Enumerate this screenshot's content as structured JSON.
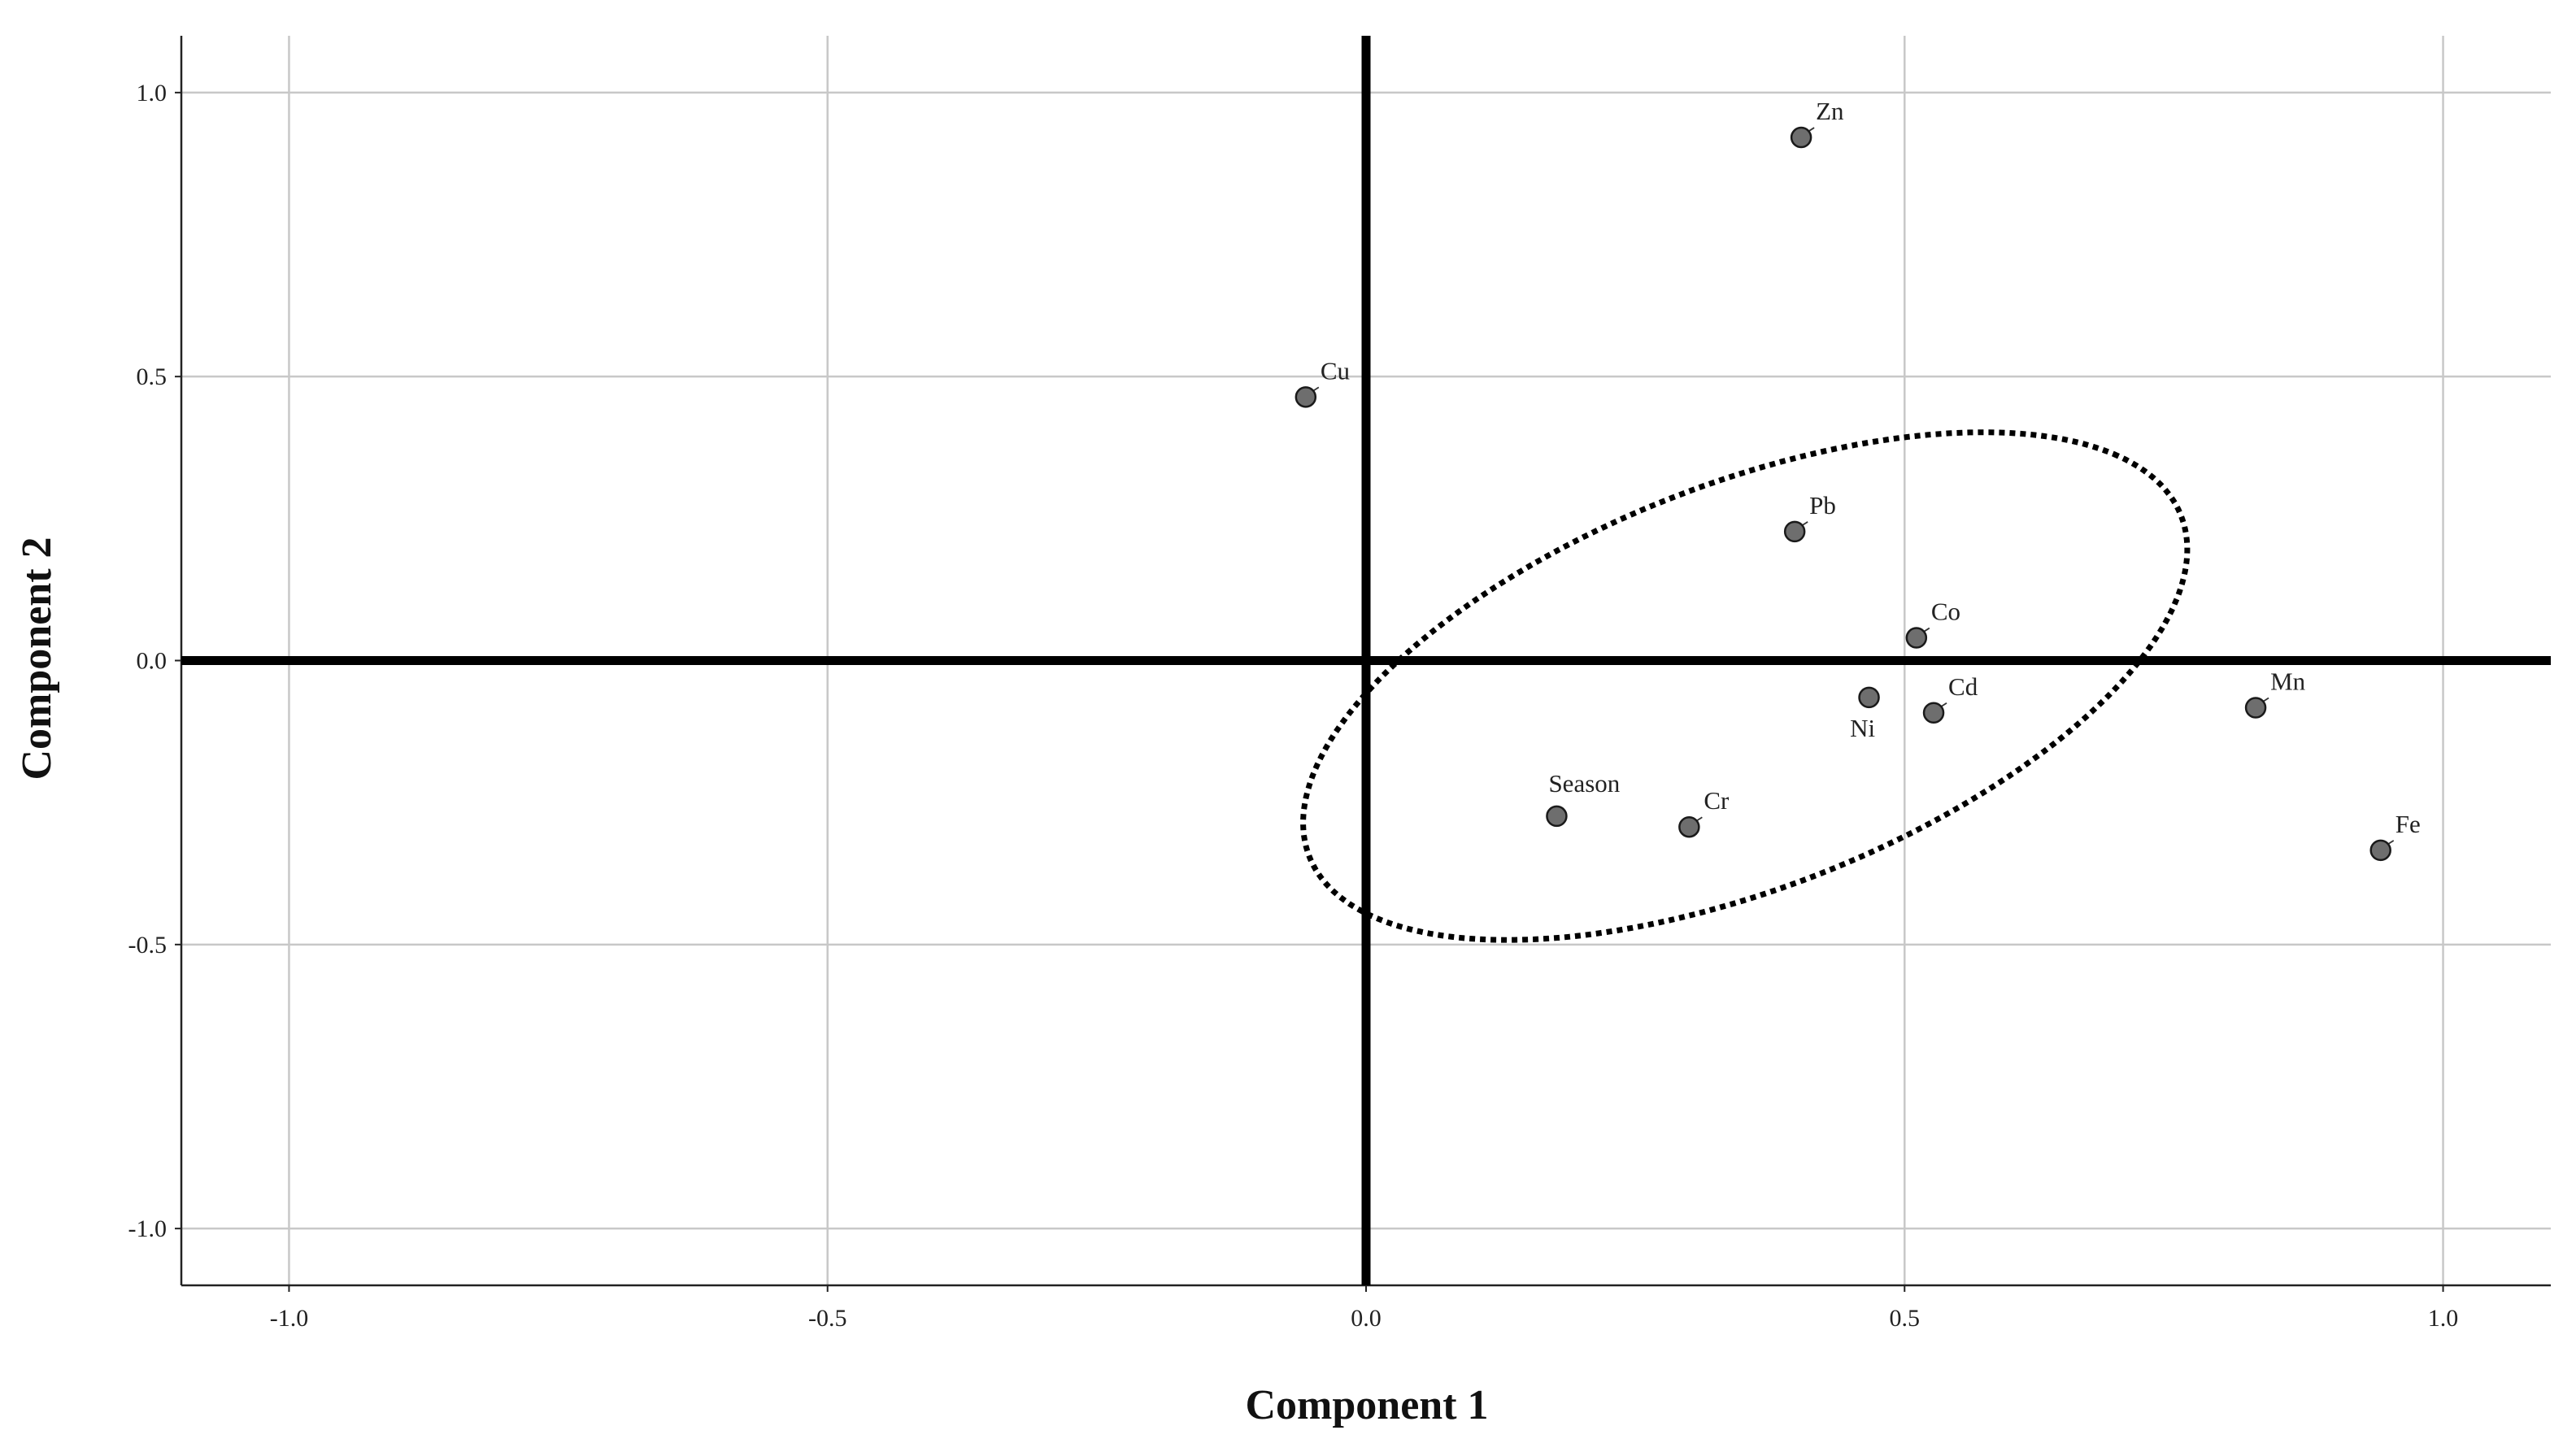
{
  "chart_data": {
    "type": "scatter",
    "xlabel": "Component 1",
    "ylabel": "Component 2",
    "xlim": [
      -1.1,
      1.1
    ],
    "ylim": [
      -1.1,
      1.1
    ],
    "xticks": [
      -1.0,
      -0.5,
      0.0,
      0.5,
      1.0
    ],
    "yticks": [
      -1.0,
      -0.5,
      0.0,
      0.5,
      1.0
    ],
    "xtick_labels": [
      "-1.0",
      "-0.5",
      "0.0",
      "0.5",
      "1.0"
    ],
    "ytick_labels": [
      "-1.0",
      "-0.5",
      "0.0",
      "0.5",
      "1.0"
    ],
    "grid": true,
    "points": [
      {
        "label": "Zn",
        "x": 0.404,
        "y": 0.921
      },
      {
        "label": "Cu",
        "x": -0.056,
        "y": 0.464
      },
      {
        "label": "Pb",
        "x": 0.398,
        "y": 0.227
      },
      {
        "label": "Co",
        "x": 0.511,
        "y": 0.04
      },
      {
        "label": "Ni",
        "x": 0.467,
        "y": -0.065
      },
      {
        "label": "Cd",
        "x": 0.527,
        "y": -0.092
      },
      {
        "label": "Mn",
        "x": 0.826,
        "y": -0.083
      },
      {
        "label": "Season",
        "x": 0.177,
        "y": -0.274
      },
      {
        "label": "Cr",
        "x": 0.3,
        "y": -0.293
      },
      {
        "label": "Fe",
        "x": 0.942,
        "y": -0.334
      }
    ],
    "cluster_ellipse": {
      "center": [
        0.352,
        -0.045
      ],
      "semi_major": 0.533,
      "semi_minor": 0.29,
      "angle_deg": 49.5
    },
    "colors": {
      "point_fill": "#6e6e6e",
      "point_stroke": "#1a1a1a",
      "grid": "#c8c8c8",
      "zero_lines": "#000000",
      "ellipse": "#000000"
    }
  }
}
